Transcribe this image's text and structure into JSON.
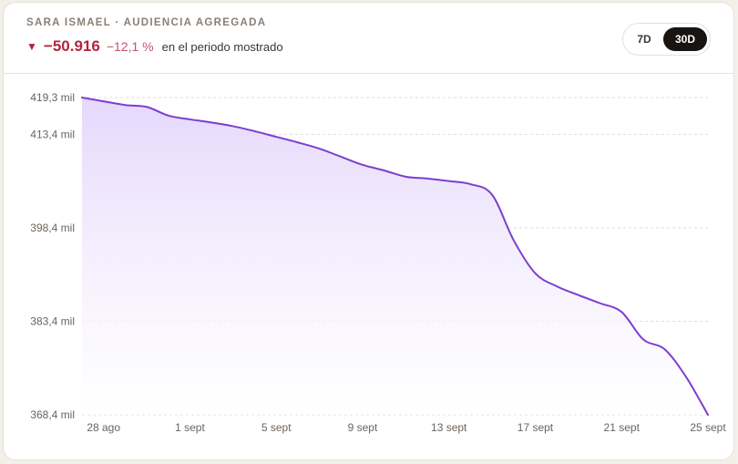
{
  "header": {
    "title": "SARA ISMAEL · AUDIENCIA AGREGADA",
    "delta_arrow": "▼",
    "delta_value": "−50.916",
    "delta_pct": "−12,1 %",
    "period_text": "en el periodo mostrado",
    "arrow_color": "#b1263c"
  },
  "range_toggle": {
    "options": [
      "7D",
      "30D"
    ],
    "selected": "30D"
  },
  "chart_data": {
    "type": "area",
    "title": "",
    "xlabel": "",
    "ylabel": "",
    "x": [
      "27 ago",
      "28 ago",
      "29 ago",
      "30 ago",
      "31 ago",
      "1 sept",
      "2 sept",
      "3 sept",
      "4 sept",
      "5 sept",
      "6 sept",
      "7 sept",
      "8 sept",
      "9 sept",
      "10 sept",
      "11 sept",
      "12 sept",
      "13 sept",
      "14 sept",
      "15 sept",
      "16 sept",
      "17 sept",
      "18 sept",
      "19 sept",
      "20 sept",
      "21 sept",
      "22 sept",
      "23 sept",
      "24 sept",
      "25 sept"
    ],
    "x_tick_labels": [
      "28 ago",
      "1 sept",
      "5 sept",
      "9 sept",
      "13 sept",
      "17 sept",
      "21 sept",
      "25 sept"
    ],
    "series": [
      {
        "values": [
          419.3,
          418.7,
          418.1,
          417.8,
          416.4,
          415.8,
          415.3,
          414.7,
          413.9,
          413.0,
          412.1,
          411.1,
          409.8,
          408.5,
          407.6,
          406.6,
          406.3,
          405.9,
          405.4,
          403.7,
          396.4,
          391.1,
          389.0,
          387.6,
          386.3,
          384.9,
          380.5,
          378.9,
          374.4,
          368.4
        ]
      }
    ],
    "y_ticks": [
      368.4,
      383.4,
      398.4,
      413.4,
      419.3
    ],
    "y_tick_labels": [
      "368,4 mil",
      "383,4 mil",
      "398,4 mil",
      "413,4 mil",
      "419,3 mil"
    ],
    "ylim": [
      368.4,
      419.3
    ],
    "grid": true,
    "line_color": "#7b3fd0",
    "fill_color": "#e6d9fb"
  }
}
